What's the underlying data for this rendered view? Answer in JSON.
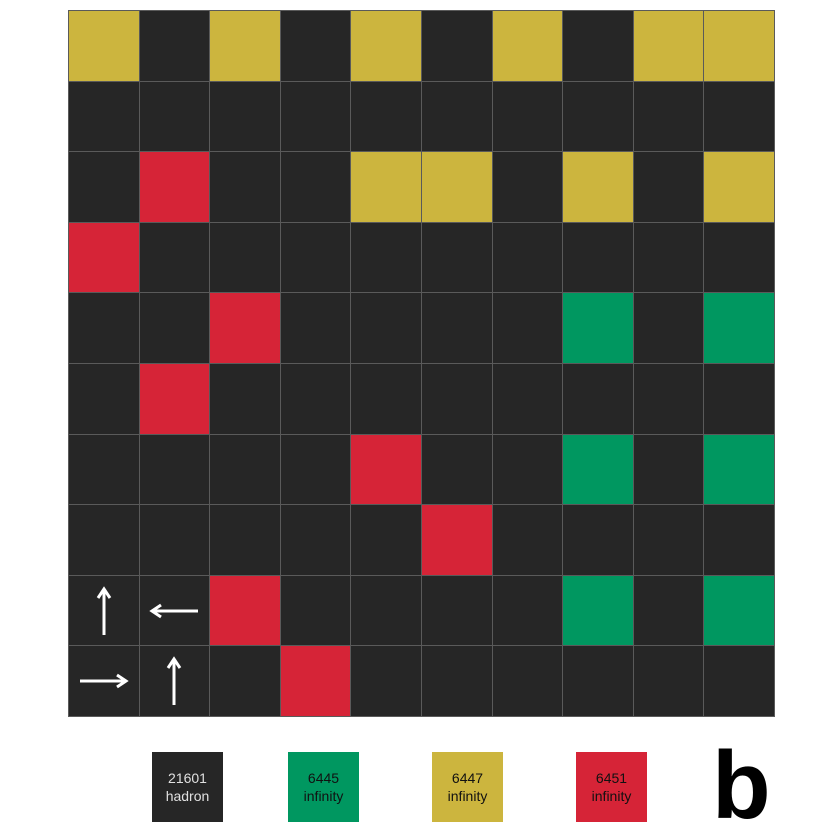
{
  "palette": {
    "k": "#262626",
    "y": "#ccb53e",
    "r": "#d62437",
    "g": "#009760"
  },
  "grid": {
    "rows": [
      [
        "y",
        "k",
        "y",
        "k",
        "y",
        "k",
        "y",
        "k",
        "y",
        "y"
      ],
      [
        "k",
        "k",
        "k",
        "k",
        "k",
        "k",
        "k",
        "k",
        "k",
        "k"
      ],
      [
        "k",
        "r",
        "k",
        "k",
        "y",
        "y",
        "k",
        "y",
        "k",
        "y"
      ],
      [
        "r",
        "k",
        "k",
        "k",
        "k",
        "k",
        "k",
        "k",
        "k",
        "k"
      ],
      [
        "k",
        "k",
        "r",
        "k",
        "k",
        "k",
        "k",
        "g",
        "k",
        "g"
      ],
      [
        "k",
        "r",
        "k",
        "k",
        "k",
        "k",
        "k",
        "k",
        "k",
        "k"
      ],
      [
        "k",
        "k",
        "k",
        "k",
        "r",
        "k",
        "k",
        "g",
        "k",
        "g"
      ],
      [
        "k",
        "k",
        "k",
        "k",
        "k",
        "r",
        "k",
        "k",
        "k",
        "k"
      ],
      [
        "k",
        "k",
        "r",
        "k",
        "k",
        "k",
        "k",
        "g",
        "k",
        "g"
      ],
      [
        "k",
        "k",
        "k",
        "r",
        "k",
        "k",
        "k",
        "k",
        "k",
        "k"
      ]
    ],
    "arrows": [
      {
        "row": 8,
        "col": 0,
        "icon": "arrow-up-icon"
      },
      {
        "row": 8,
        "col": 1,
        "icon": "arrow-left-icon"
      },
      {
        "row": 9,
        "col": 0,
        "icon": "arrow-right-icon"
      },
      {
        "row": 9,
        "col": 1,
        "icon": "arrow-up-icon"
      }
    ]
  },
  "legend": [
    {
      "id": "k",
      "color": "#262626",
      "text_color": "#e0e0e0",
      "line1": "21601",
      "line2": "hadron"
    },
    {
      "id": "g",
      "color": "#009760",
      "text_color": "#111111",
      "line1": "6445",
      "line2": "infinity"
    },
    {
      "id": "y",
      "color": "#ccb53e",
      "text_color": "#111111",
      "line1": "6447",
      "line2": "infinity"
    },
    {
      "id": "r",
      "color": "#d62437",
      "text_color": "#111111",
      "line1": "6451",
      "line2": "infinity"
    }
  ],
  "panel_label": "b"
}
